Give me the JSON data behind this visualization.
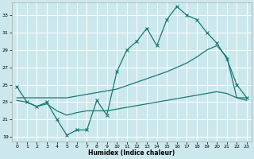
{
  "xlabel": "Humidex (Indice chaleur)",
  "bg_color": "#cce8ed",
  "grid_color": "#ffffff",
  "line_color": "#1a7a6e",
  "xlim": [
    -0.5,
    23.5
  ],
  "ylim": [
    18.5,
    34.5
  ],
  "yticks": [
    19,
    21,
    23,
    25,
    27,
    29,
    31,
    33
  ],
  "xticks": [
    0,
    1,
    2,
    3,
    4,
    5,
    6,
    7,
    8,
    9,
    10,
    11,
    12,
    13,
    14,
    15,
    16,
    17,
    18,
    19,
    20,
    21,
    22,
    23
  ],
  "line1_x": [
    0,
    1,
    2,
    3,
    4,
    5,
    6,
    7,
    8,
    9,
    10,
    11,
    12,
    13,
    14,
    15,
    16,
    17,
    18,
    19,
    20,
    21,
    22,
    23
  ],
  "line1_y": [
    24.8,
    23.0,
    22.5,
    23.0,
    21.0,
    19.2,
    19.8,
    19.8,
    23.2,
    21.5,
    26.5,
    29.0,
    30.0,
    31.5,
    29.5,
    32.5,
    34.0,
    33.0,
    32.5,
    31.0,
    29.8,
    28.0,
    25.0,
    23.5
  ],
  "line2_x": [
    0,
    5,
    10,
    15,
    16,
    17,
    18,
    19,
    20,
    21,
    22,
    23
  ],
  "line2_y": [
    23.5,
    23.5,
    24.5,
    26.5,
    27.0,
    27.5,
    28.2,
    29.0,
    29.5,
    28.2,
    23.5,
    23.5
  ],
  "line3_x": [
    0,
    1,
    2,
    3,
    4,
    5,
    6,
    7,
    8,
    9,
    10,
    11,
    12,
    13,
    14,
    15,
    16,
    17,
    18,
    19,
    20,
    21,
    22,
    23
  ],
  "line3_y": [
    23.2,
    23.0,
    22.5,
    22.8,
    22.0,
    21.5,
    21.8,
    22.0,
    22.0,
    22.0,
    22.2,
    22.4,
    22.6,
    22.8,
    23.0,
    23.2,
    23.4,
    23.6,
    23.8,
    24.0,
    24.2,
    24.0,
    23.5,
    23.2
  ]
}
